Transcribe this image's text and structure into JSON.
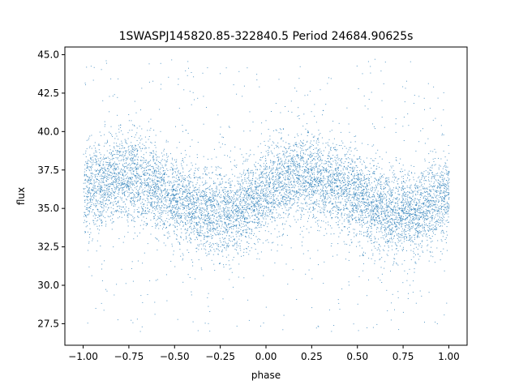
{
  "chart_data": {
    "type": "scatter",
    "title": "1SWASPJ145820.85-322840.5 Period 24684.90625s",
    "xlabel": "phase",
    "ylabel": "flux",
    "xlim": [
      -1.1,
      1.1
    ],
    "ylim": [
      26.1,
      45.5
    ],
    "xticks": [
      -1.0,
      -0.75,
      -0.5,
      -0.25,
      0.0,
      0.25,
      0.5,
      0.75,
      1.0
    ],
    "xtick_labels": [
      "−1.00",
      "−0.75",
      "−0.50",
      "−0.25",
      "0.00",
      "0.25",
      "0.50",
      "0.75",
      "1.00"
    ],
    "yticks": [
      27.5,
      30.0,
      32.5,
      35.0,
      37.5,
      40.0,
      42.5,
      45.0
    ],
    "ytick_labels": [
      "27.5",
      "30.0",
      "32.5",
      "35.0",
      "37.5",
      "40.0",
      "42.5",
      "45.0"
    ],
    "grid": false,
    "color": "#1f77b4",
    "series": [
      {
        "phase": [
          -1.0,
          -0.9,
          -0.8,
          -0.7,
          -0.6,
          -0.5,
          -0.4,
          -0.3,
          -0.2,
          -0.1,
          0.0,
          0.1,
          0.2,
          0.3,
          0.4,
          0.5,
          0.6,
          0.7,
          0.8,
          0.9,
          1.0
        ],
        "flux_center": [
          36.0,
          36.8,
          37.2,
          37.0,
          36.5,
          35.8,
          35.0,
          34.7,
          34.8,
          35.3,
          36.0,
          36.8,
          37.2,
          37.0,
          36.5,
          35.8,
          35.0,
          34.7,
          34.8,
          35.3,
          36.0
        ],
        "flux_spread": 1.4,
        "flux_min": 27.0,
        "flux_max": 44.8
      }
    ]
  }
}
